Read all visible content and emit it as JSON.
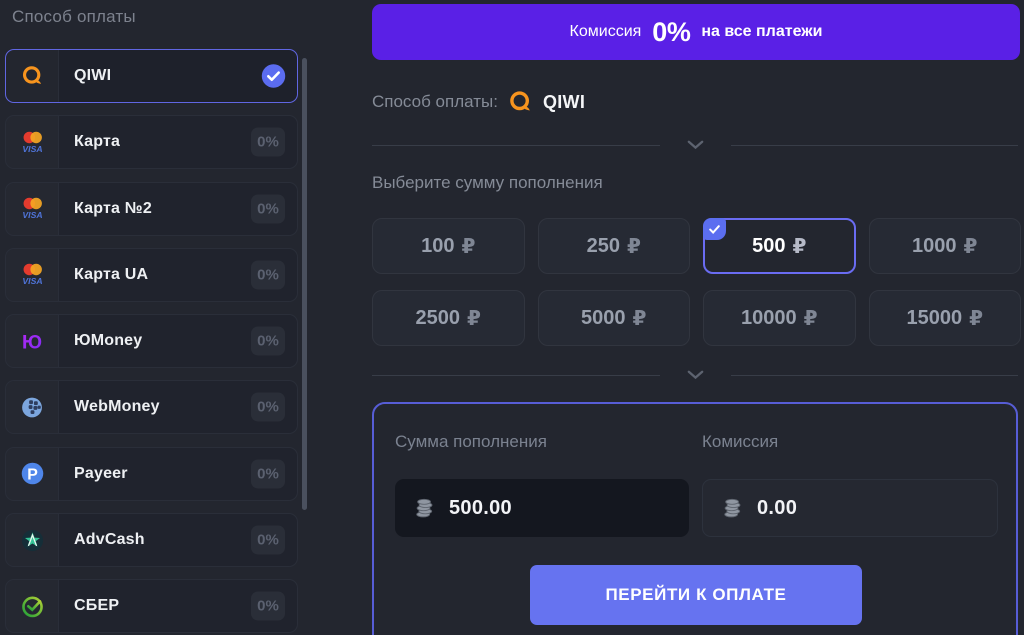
{
  "sidebar": {
    "title": "Способ оплаты",
    "items": [
      {
        "name": "qiwi",
        "label": "QIWI",
        "icon": "qiwi-icon",
        "selected": true
      },
      {
        "name": "card",
        "label": "Карта",
        "icon": "card-icon",
        "fee": "0%"
      },
      {
        "name": "card-2",
        "label": "Карта №2",
        "icon": "card-icon",
        "fee": "0%"
      },
      {
        "name": "card-ua",
        "label": "Карта UA",
        "icon": "card-icon",
        "fee": "0%"
      },
      {
        "name": "yoomoney",
        "label": "ЮMoney",
        "icon": "yoomoney-icon",
        "fee": "0%"
      },
      {
        "name": "webmoney",
        "label": "WebMoney",
        "icon": "webmoney-icon",
        "fee": "0%"
      },
      {
        "name": "payeer",
        "label": "Payeer",
        "icon": "payeer-icon",
        "fee": "0%"
      },
      {
        "name": "advcash",
        "label": "AdvCash",
        "icon": "advcash-icon",
        "fee": "0%"
      },
      {
        "name": "sber",
        "label": "СБЕР",
        "icon": "sber-icon",
        "fee": "0%"
      }
    ]
  },
  "main": {
    "banner": {
      "prefix": "Комиссия",
      "percent": "0%",
      "suffix": "на все платежи"
    },
    "method": {
      "label": "Способ оплаты:",
      "value": "QIWI",
      "icon": "qiwi-icon"
    },
    "amount_section": {
      "title": "Выберите сумму пополнения",
      "options": [
        {
          "value": "100",
          "currency": "₽"
        },
        {
          "value": "250",
          "currency": "₽"
        },
        {
          "value": "500",
          "currency": "₽",
          "selected": true
        },
        {
          "value": "1000",
          "currency": "₽"
        },
        {
          "value": "2500",
          "currency": "₽"
        },
        {
          "value": "5000",
          "currency": "₽"
        },
        {
          "value": "10000",
          "currency": "₽"
        },
        {
          "value": "15000",
          "currency": "₽"
        }
      ]
    },
    "summary": {
      "amount_label": "Сумма пополнения",
      "amount_value": "500.00",
      "fee_label": "Комиссия",
      "fee_value": "0.00",
      "value_icon": "coins-icon",
      "submit_label": "ПЕРЕЙТИ К ОПЛАТЕ"
    }
  },
  "colors": {
    "page_bg": "#23262f",
    "banner_bg": "#5a20e6",
    "submit_bg": "#6673f0",
    "selected_border": "#6a6cf2",
    "check_badge": "#5b6ef0",
    "item_bg": "#20232d",
    "fee_badge_bg": "#2a2e38"
  }
}
